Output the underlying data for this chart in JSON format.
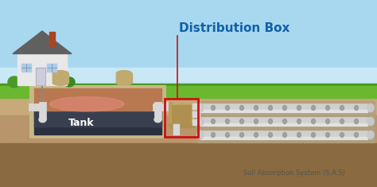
{
  "title": "Distribution Box",
  "sas_label": "Soil Absorption System (S.A.S)",
  "tank_label": "Tank",
  "bg_sky_top": "#a8d8ef",
  "bg_sky_bottom": "#d0ecf8",
  "bg_grass_dark": "#4a9a20",
  "bg_grass_light": "#6ab830",
  "bg_soil_light": "#c8a97a",
  "bg_soil_mid": "#b8956a",
  "bg_soil_dark": "#8a6a40",
  "tank_outer": "#c8b888",
  "tank_outer_edge": "#9a8840",
  "tank_scum": "#c4804a",
  "tank_water": "#2a3040",
  "tank_water2": "#384050",
  "pipe_color": "#d8d8d8",
  "pipe_edge": "#aaaaaa",
  "dbox_color": "#c0a870",
  "dbox_border": "#cc1111",
  "title_color": "#1060aa",
  "house_wall": "#e8e8e8",
  "house_roof": "#606060",
  "house_chimney": "#aa4422",
  "house_door": "#ccccdd",
  "house_window": "#aaccee",
  "bush_color": "#4a9a28",
  "sas_pipe_color": "#d0d0d0",
  "sas_pipe_edge": "#999999",
  "gravel_color": "#b0a080",
  "gravel_edge": "#9a8a70",
  "arrow_color": "#cc1111",
  "annot_line_color": "#cc1111",
  "lid_color": "#c0aa70",
  "lid_edge": "#9a8840",
  "pink_glow": "#e08878"
}
